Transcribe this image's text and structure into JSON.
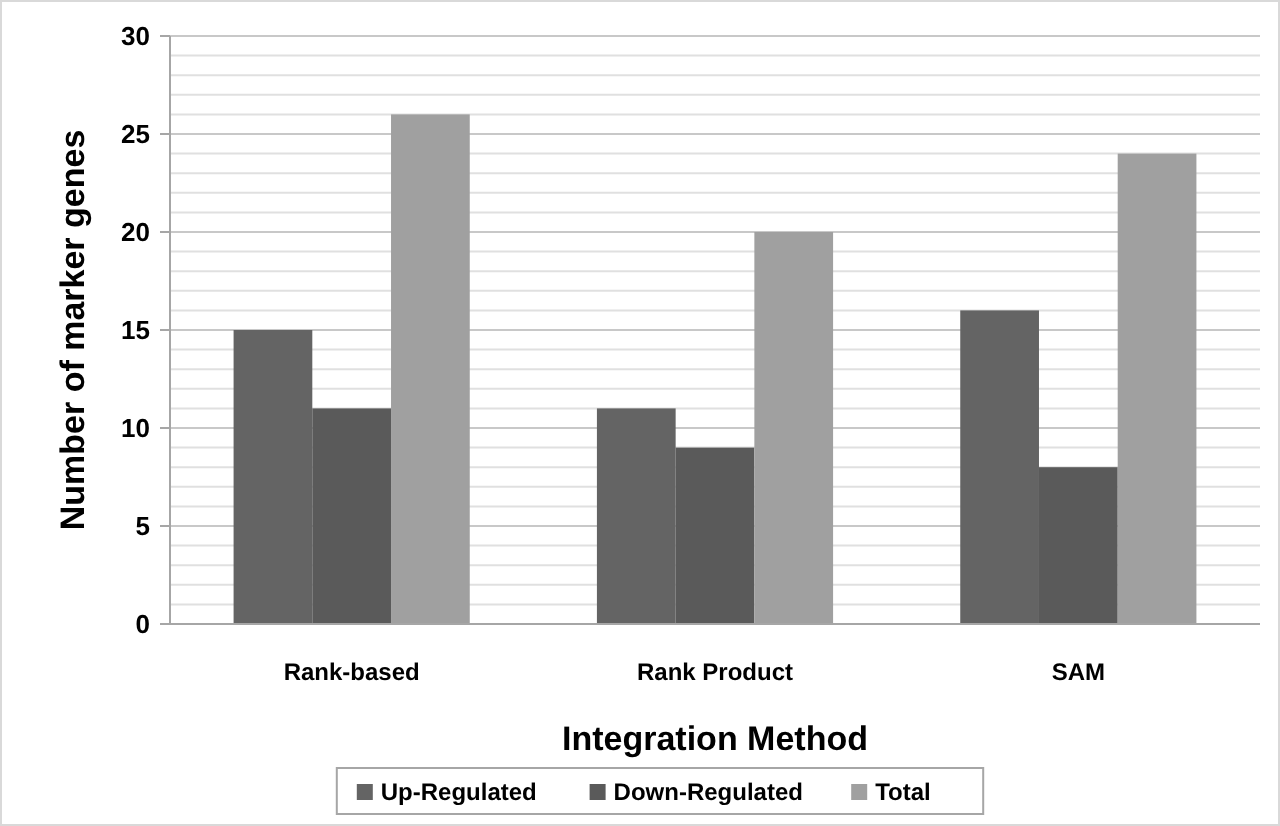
{
  "chart_data": {
    "type": "bar",
    "xlabel": "Integration Method",
    "ylabel": "Number of marker genes",
    "categories": [
      "Rank-based",
      "Rank Product",
      "SAM"
    ],
    "series": [
      {
        "name": "Up-Regulated",
        "color": "#646464",
        "values": [
          15,
          11,
          16
        ]
      },
      {
        "name": "Down-Regulated",
        "color": "#5a5a5a",
        "values": [
          11,
          9,
          8
        ]
      },
      {
        "name": "Total",
        "color": "#a0a0a0",
        "values": [
          26,
          20,
          24
        ]
      }
    ],
    "ylim": [
      0,
      30
    ],
    "yticks": [
      0,
      {
        "value": 1,
        "label": null
      },
      {
        "value": 2,
        "label": null
      },
      {
        "value": 3,
        "label": null
      },
      {
        "value": 4,
        "label": null
      },
      5,
      {
        "value": 6,
        "label": null
      },
      {
        "value": 7,
        "label": null
      },
      {
        "value": 8,
        "label": null
      },
      {
        "value": 9,
        "label": null
      },
      10,
      {
        "value": 11,
        "label": null
      },
      {
        "value": 12,
        "label": null
      },
      {
        "value": 13,
        "label": null
      },
      {
        "value": 14,
        "label": null
      },
      15,
      {
        "value": 16,
        "label": null
      },
      {
        "value": 17,
        "label": null
      },
      {
        "value": 18,
        "label": null
      },
      {
        "value": 19,
        "label": null
      },
      20,
      {
        "value": 21,
        "label": null
      },
      {
        "value": 22,
        "label": null
      },
      {
        "value": 23,
        "label": null
      },
      {
        "value": 24,
        "label": null
      },
      25,
      {
        "value": 26,
        "label": null
      },
      {
        "value": 27,
        "label": null
      },
      {
        "value": 28,
        "label": null
      },
      {
        "value": 29,
        "label": null
      },
      30
    ],
    "grid": "y",
    "legend": "bottom"
  }
}
